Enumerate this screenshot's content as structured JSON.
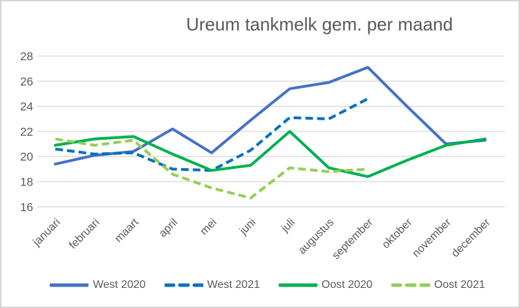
{
  "chart_data": {
    "type": "line",
    "title": "Ureum tankmelk gem. per maand",
    "categories": [
      "januari",
      "februari",
      "maart",
      "april",
      "mei",
      "juni",
      "juli",
      "augustus",
      "september",
      "oktober",
      "november",
      "december"
    ],
    "series": [
      {
        "name": "West 2020",
        "color": "#4472C4",
        "style": "solid",
        "values": [
          19.4,
          20.1,
          20.4,
          22.2,
          20.3,
          22.9,
          25.4,
          25.9,
          27.1,
          24.0,
          21.0,
          21.3
        ]
      },
      {
        "name": "West 2021",
        "color": "#0070C0",
        "style": "dashed",
        "values": [
          20.6,
          20.2,
          20.3,
          19.0,
          18.9,
          20.5,
          23.1,
          23.0,
          24.6,
          null,
          null,
          null
        ]
      },
      {
        "name": "Oost 2020",
        "color": "#00B050",
        "style": "solid",
        "values": [
          20.9,
          21.4,
          21.6,
          20.2,
          18.9,
          19.3,
          22.0,
          19.1,
          18.4,
          19.7,
          20.9,
          21.4
        ]
      },
      {
        "name": "Oost 2021",
        "color": "#92D050",
        "style": "dashed",
        "values": [
          21.4,
          20.9,
          21.3,
          18.6,
          17.5,
          16.7,
          19.1,
          18.8,
          19.0,
          null,
          null,
          null
        ]
      }
    ],
    "xlabel": "",
    "ylabel": "",
    "ylim": [
      16,
      28
    ],
    "yticks": [
      16,
      18,
      20,
      22,
      24,
      26,
      28
    ],
    "grid": true,
    "legend_position": "bottom",
    "colors": {
      "grid": "#D9D9D9",
      "axis_text": "#595959",
      "title_text": "#595959",
      "frame_border": "#D6D6D6",
      "background": "#FFFFFF"
    }
  }
}
